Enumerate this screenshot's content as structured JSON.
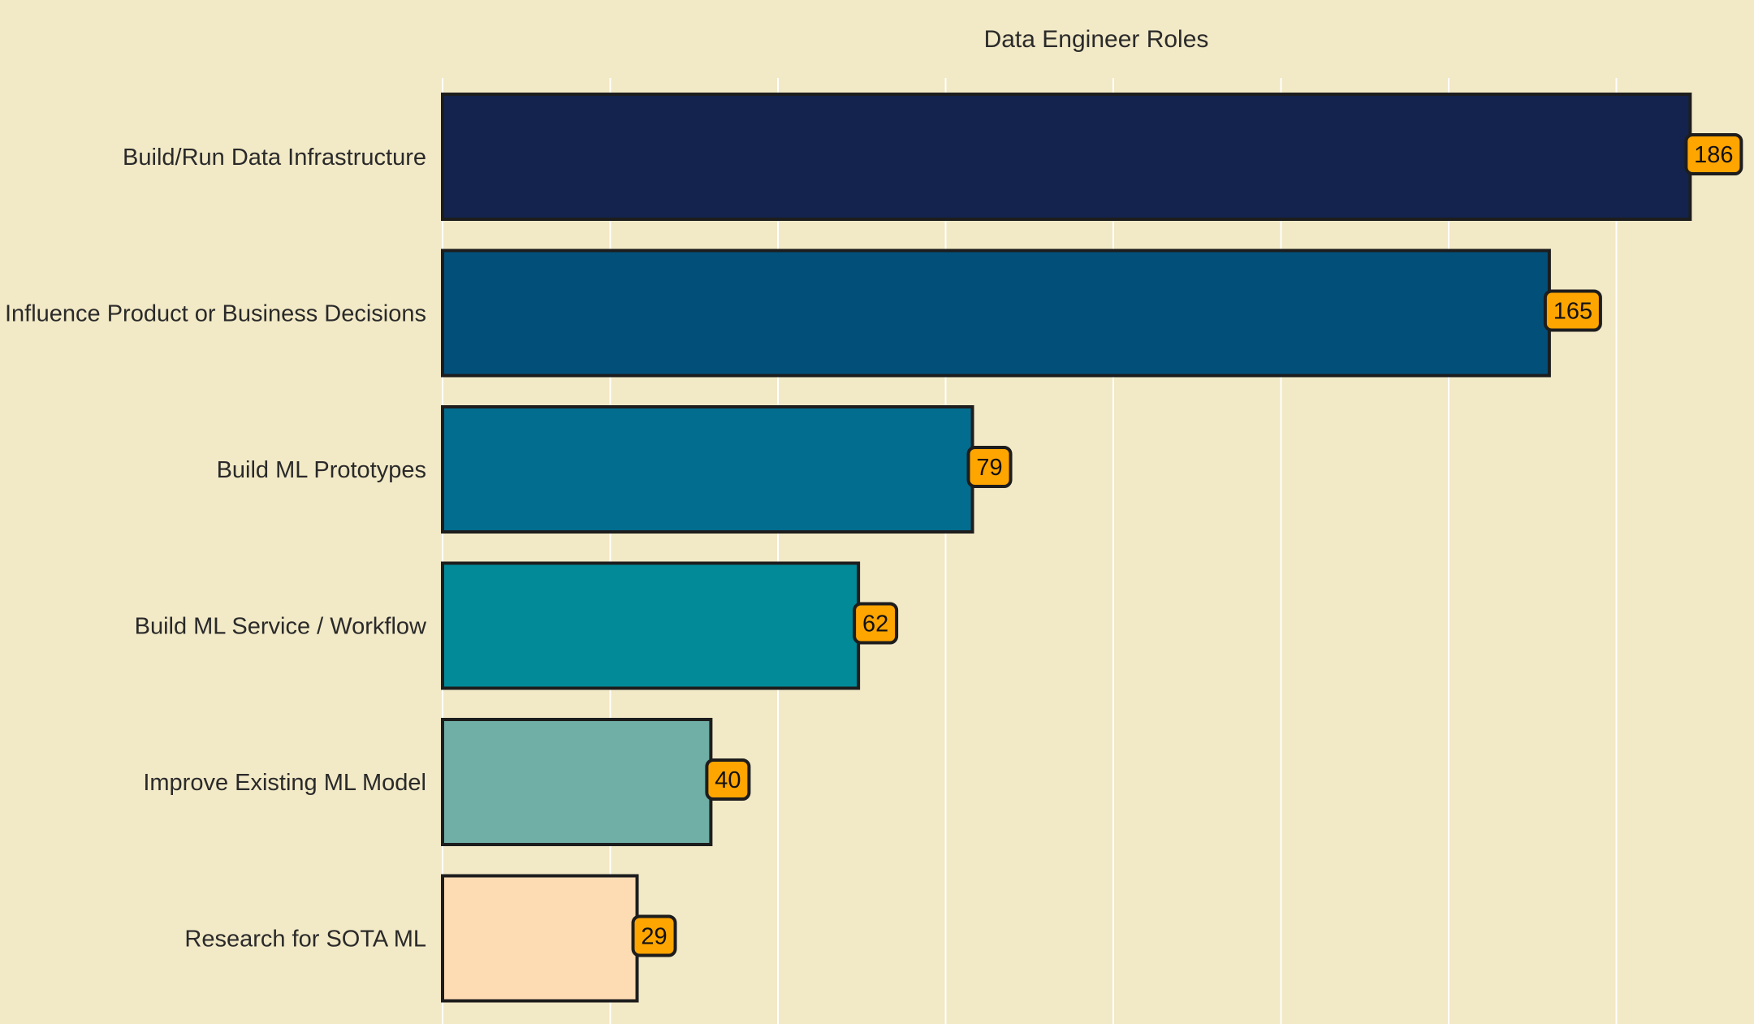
{
  "chart_data": {
    "type": "bar",
    "orientation": "horizontal",
    "title": "Data Engineer Roles",
    "xlabel": "",
    "ylabel": "",
    "categories": [
      "Build/Run Data Infrastructure",
      "Influence Product or Business Decisions",
      "Build ML Prototypes",
      "Build ML Service / Workflow",
      "Improve Existing ML Model",
      "Research for SOTA ML"
    ],
    "values": [
      186,
      165,
      79,
      62,
      40,
      29
    ],
    "bar_colors": [
      "#13234d",
      "#02507a",
      "#036d8f",
      "#028a98",
      "#70afa6",
      "#fedcb3"
    ],
    "xlim": [
      0,
      195
    ],
    "grid": true,
    "x_tick_labels_shown": false
  },
  "style": {
    "background": "#f2e9c6",
    "grid_color": "#ffffff",
    "bar_edge_color": "#1d1d1d",
    "label_box_color": "#ffa500",
    "label_box_edge": "#1d1d1d"
  }
}
